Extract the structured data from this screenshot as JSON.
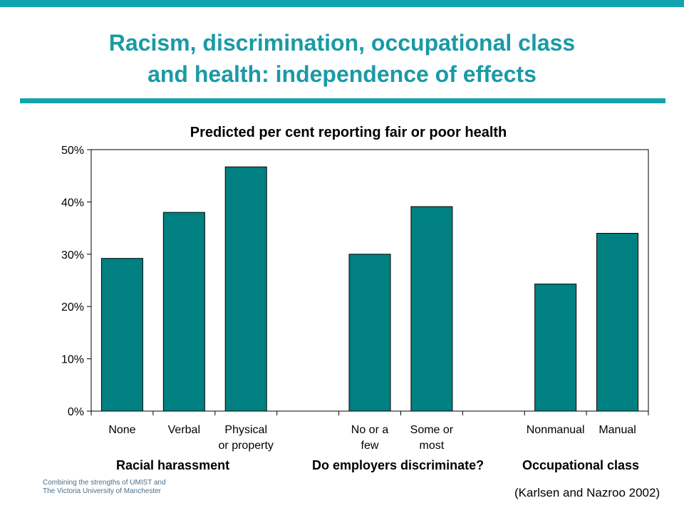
{
  "slide": {
    "title_line1": "Racism, discrimination, occupational class",
    "title_line2": "and health: independence of effects",
    "accent_color": "#12a3ad",
    "title_color": "#1a9aa6"
  },
  "chart_data": {
    "type": "bar",
    "title": "Predicted per cent reporting fair or poor health",
    "categories": [
      [
        "None"
      ],
      [
        "Verbal"
      ],
      [
        "Physical",
        "or property"
      ],
      [],
      [
        "No or a",
        "few"
      ],
      [
        "Some or",
        "most"
      ],
      [],
      [
        "Nonmanual"
      ],
      [
        "Manual"
      ]
    ],
    "values": [
      29.2,
      38,
      46.7,
      null,
      30,
      39.1,
      null,
      24.3,
      34
    ],
    "ylim": [
      0,
      50
    ],
    "yticks": [
      "0%",
      "10%",
      "20%",
      "30%",
      "40%",
      "50%"
    ],
    "xlabel": "",
    "ylabel": "",
    "bar_color": "#008080",
    "grid": false,
    "group_labels": [
      "Racial harassment",
      "Do employers discriminate?",
      "Occupational class"
    ]
  },
  "footer": {
    "line1": "Combining the strengths of UMIST and",
    "line2": "The Victoria University of Manchester",
    "citation": "(Karlsen and Nazroo 2002)"
  }
}
